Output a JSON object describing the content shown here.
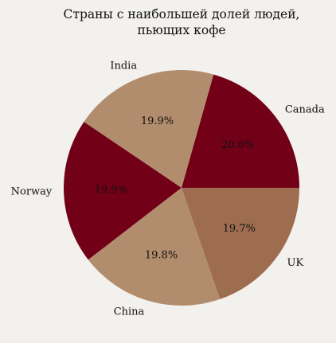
{
  "chart_data": {
    "type": "pie",
    "title_lines": [
      "Страны с наибольшей долей людей,",
      "пьющих кофе"
    ],
    "slices": [
      {
        "label": "Canada",
        "value": 20.6,
        "pct_label": "20.6%",
        "color": "#720017"
      },
      {
        "label": "India",
        "value": 19.9,
        "pct_label": "19.9%",
        "color": "#b28d6d"
      },
      {
        "label": "Norway",
        "value": 19.9,
        "pct_label": "19.9%",
        "color": "#720017"
      },
      {
        "label": "China",
        "value": 19.8,
        "pct_label": "19.8%",
        "color": "#b28d6d"
      },
      {
        "label": "UK",
        "value": 19.7,
        "pct_label": "19.7%",
        "color": "#9e6d50"
      }
    ],
    "start_angle_deg": 0,
    "direction": "counterclockwise"
  },
  "colors": {
    "background": "#f3f1ed"
  }
}
